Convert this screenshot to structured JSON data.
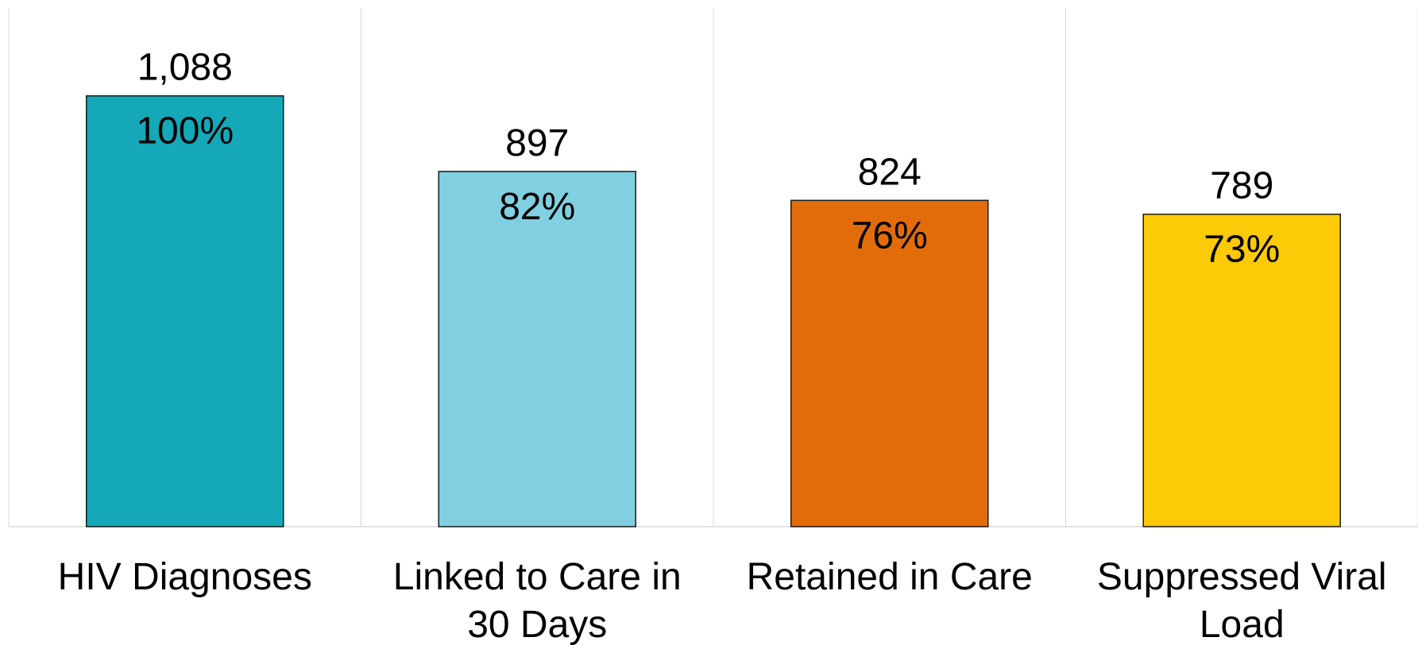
{
  "chart_data": {
    "type": "bar",
    "categories": [
      [
        "HIV Diagnoses"
      ],
      [
        "Linked to Care in",
        "30 Days"
      ],
      [
        "Retained in Care"
      ],
      [
        "Suppressed Viral",
        "Load"
      ]
    ],
    "values": [
      1088,
      897,
      824,
      789
    ],
    "value_labels": [
      "1,088",
      "897",
      "824",
      "789"
    ],
    "percent_labels": [
      "100%",
      "82%",
      "76%",
      "73%"
    ],
    "colors": [
      "#14a8b8",
      "#80d0e2",
      "#e36c0a",
      "#fdca08"
    ],
    "ylim": [
      0,
      1310
    ],
    "grid": "vertical category separators",
    "legend": "none"
  }
}
